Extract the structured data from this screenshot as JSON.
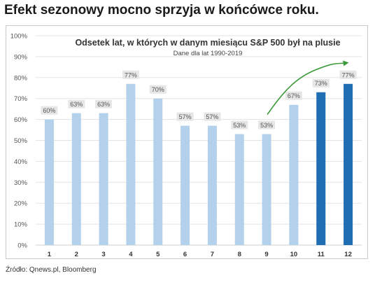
{
  "headline": "Efekt sezonowy mocno sprzyja w końcówce roku.",
  "source": "Źródło: Qnews.pl, Bloomberg",
  "colors": {
    "bar_light": "#b3d1ea",
    "bar_dark": "#1f6db3",
    "arrow": "#3a9a3a",
    "grid": "#e3e3e3",
    "label_bg": "#e6e6e6"
  },
  "chart_data": {
    "type": "bar",
    "title": "Odsetek lat, w których w danym miesiącu S&P 500 był na plusie",
    "subtitle": "Dane dla lat 1990-2019",
    "categories": [
      "1",
      "2",
      "3",
      "4",
      "5",
      "6",
      "7",
      "8",
      "9",
      "10",
      "11",
      "12"
    ],
    "values": [
      60,
      63,
      63,
      77,
      70,
      57,
      57,
      53,
      53,
      67,
      73,
      77
    ],
    "data_labels": [
      "60%",
      "63%",
      "63%",
      "77%",
      "70%",
      "57%",
      "57%",
      "53%",
      "53%",
      "67%",
      "73%",
      "77%"
    ],
    "highlighted_categories": [
      "11",
      "12"
    ],
    "ylim": [
      0,
      100
    ],
    "yticks": [
      "0%",
      "10%",
      "20%",
      "30%",
      "40%",
      "50%",
      "60%",
      "70%",
      "80%",
      "90%",
      "100%"
    ],
    "grid": true,
    "legend": false,
    "annotation": "arrow rising from month 9 toward month 12"
  }
}
